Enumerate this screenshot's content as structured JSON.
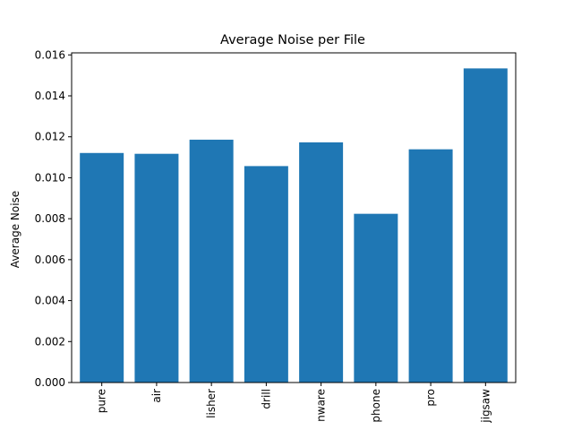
{
  "chart_data": {
    "type": "bar",
    "title": "Average Noise per File",
    "xlabel": "",
    "ylabel": "Average Noise",
    "categories": [
      "pure",
      "air",
      "polisher",
      "drill",
      "chinaware",
      "phone",
      "pro",
      "jigsaw"
    ],
    "visible_tick_labels": [
      "pure",
      "air",
      "lisher",
      "drill",
      "nware",
      "phone",
      "pro",
      "jigsaw"
    ],
    "values": [
      0.01121,
      0.01117,
      0.01186,
      0.01057,
      0.01173,
      0.00824,
      0.01139,
      0.01534
    ],
    "ylim": [
      0,
      0.0161
    ],
    "yticks": [
      0.0,
      0.002,
      0.004,
      0.006,
      0.008,
      0.01,
      0.012,
      0.014,
      0.016
    ],
    "ytick_labels": [
      "0.000",
      "0.002",
      "0.004",
      "0.006",
      "0.008",
      "0.010",
      "0.012",
      "0.014",
      "0.016"
    ],
    "grid": false,
    "bar_color": "#1f77b4"
  }
}
